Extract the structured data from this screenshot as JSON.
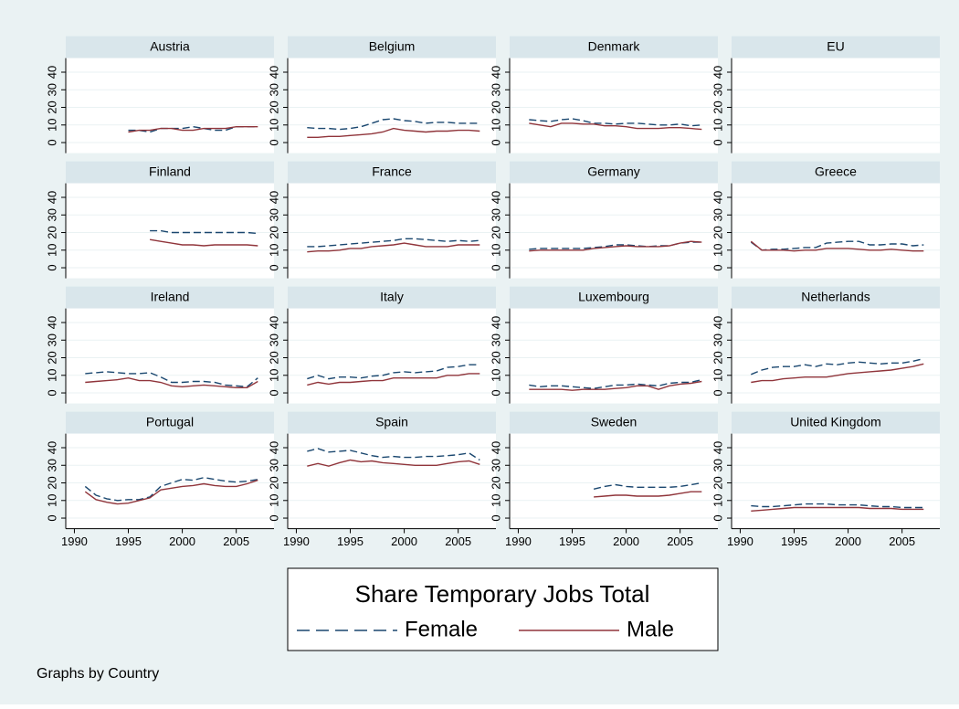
{
  "chart_data": {
    "type": "line",
    "x": [
      1991,
      1992,
      1993,
      1994,
      1995,
      1996,
      1997,
      1998,
      1999,
      2000,
      2001,
      2002,
      2003,
      2004,
      2005,
      2006,
      2007
    ],
    "xlim": [
      1989.2,
      2008.5
    ],
    "xticks": [
      1990,
      1995,
      2000,
      2005
    ],
    "ylim": [
      -6,
      48
    ],
    "yticks": [
      0,
      10,
      20,
      30,
      40
    ],
    "grid": true,
    "legend": {
      "title": "Share Temporary Jobs Total"
    },
    "series": [
      {
        "name": "Female",
        "color": "#1a476f",
        "dashed": true
      },
      {
        "name": "Male",
        "color": "#90353b",
        "dashed": false
      }
    ],
    "note": "Graphs by Country",
    "panels": [
      {
        "title": "Austria",
        "values": [
          [
            null,
            null,
            null,
            null,
            7,
            7,
            6,
            8,
            8,
            8,
            9,
            8,
            7,
            7,
            9,
            9,
            9
          ],
          [
            null,
            null,
            null,
            null,
            6,
            7,
            7,
            8,
            8,
            7,
            7,
            8,
            8,
            8,
            9,
            9,
            9
          ]
        ]
      },
      {
        "title": "Belgium",
        "values": [
          [
            8.5,
            8,
            8,
            7.5,
            8,
            9,
            11,
            13,
            13.5,
            12.5,
            12,
            11,
            11.5,
            11.5,
            11,
            11,
            11
          ],
          [
            3,
            3,
            3.5,
            3.5,
            4,
            4.5,
            5,
            6,
            8,
            7,
            6.5,
            6,
            6.5,
            6.5,
            7,
            7,
            6.5
          ]
        ]
      },
      {
        "title": "Denmark",
        "values": [
          [
            13,
            12.5,
            12,
            13,
            13.5,
            12.5,
            11,
            11,
            10.5,
            11,
            11,
            10.5,
            10,
            10,
            10.5,
            9.5,
            10
          ],
          [
            11,
            10,
            9,
            11,
            11,
            10.5,
            10.5,
            9.5,
            9.5,
            9,
            8,
            8,
            8,
            8.5,
            8.5,
            8,
            7.5
          ]
        ]
      },
      {
        "title": "EU",
        "values": [
          [
            null,
            null,
            null,
            null,
            null,
            null,
            null,
            null,
            null,
            null,
            null,
            null,
            null,
            null,
            null,
            null,
            null
          ],
          [
            null,
            null,
            null,
            null,
            null,
            null,
            null,
            null,
            null,
            null,
            null,
            null,
            null,
            null,
            null,
            null,
            null
          ]
        ]
      },
      {
        "title": "Finland",
        "values": [
          [
            null,
            null,
            null,
            null,
            null,
            null,
            21,
            21,
            20,
            20,
            20,
            20,
            20,
            20,
            20,
            20,
            19.5
          ],
          [
            null,
            null,
            null,
            null,
            null,
            null,
            16,
            15,
            14,
            13,
            13,
            12.5,
            13,
            13,
            13,
            13,
            12.5
          ]
        ]
      },
      {
        "title": "France",
        "values": [
          [
            12,
            12,
            12.5,
            13,
            13.5,
            14,
            14.5,
            15,
            15.5,
            16.5,
            16.5,
            16,
            15.5,
            15,
            15.5,
            15,
            15.5
          ],
          [
            9,
            9.5,
            9.5,
            10,
            11,
            11,
            12,
            12.5,
            13,
            14,
            13,
            12,
            12,
            12,
            13,
            13,
            13
          ]
        ]
      },
      {
        "title": "Germany",
        "values": [
          [
            10.5,
            11,
            11,
            11,
            11,
            11,
            11.5,
            12,
            13,
            13,
            12.5,
            12,
            12.5,
            12.5,
            14,
            14.5,
            14.5
          ],
          [
            9.5,
            10,
            10,
            10,
            10,
            10,
            11,
            11.5,
            12,
            12.5,
            12,
            12,
            12,
            12.5,
            14,
            15,
            14.5
          ]
        ]
      },
      {
        "title": "Greece",
        "values": [
          [
            14.5,
            10,
            10.5,
            10.5,
            11,
            11.5,
            11.5,
            14,
            14.5,
            15,
            15,
            13,
            13,
            13.5,
            13.5,
            12.5,
            13
          ],
          [
            15,
            10,
            10,
            10,
            9.5,
            10,
            10,
            11,
            11,
            11,
            10.5,
            10,
            10,
            10.5,
            10,
            9.5,
            9.5
          ]
        ]
      },
      {
        "title": "Ireland",
        "values": [
          [
            11,
            11.5,
            12,
            11.5,
            11,
            11,
            11.5,
            9,
            6,
            6,
            6.5,
            6.5,
            6,
            4.5,
            4,
            3.5,
            8.5
          ],
          [
            6,
            6.5,
            7,
            7.5,
            8.5,
            7,
            7,
            6,
            4,
            3.5,
            4,
            4.5,
            4,
            3.5,
            3,
            3,
            6.5
          ]
        ]
      },
      {
        "title": "Italy",
        "values": [
          [
            8,
            10,
            8,
            9,
            9,
            8.5,
            9.5,
            10,
            11.5,
            12,
            11.5,
            12,
            12.5,
            14.5,
            15,
            16,
            16
          ],
          [
            4.5,
            6,
            5,
            6,
            6,
            6.5,
            7,
            7,
            8.5,
            8.5,
            8.5,
            8.5,
            8.5,
            10,
            10,
            11,
            11
          ]
        ]
      },
      {
        "title": "Luxembourg",
        "values": [
          [
            4.5,
            3.5,
            4,
            4,
            3.5,
            3,
            2.5,
            3.5,
            4.5,
            4.5,
            5,
            4.5,
            4,
            5.5,
            6,
            6,
            7.5
          ],
          [
            2,
            2,
            2,
            2,
            1.5,
            2,
            2,
            2,
            2.5,
            3,
            4,
            4,
            2,
            4,
            5,
            5.5,
            6.5
          ]
        ]
      },
      {
        "title": "Netherlands",
        "values": [
          [
            10.5,
            13,
            14.5,
            15,
            15,
            16,
            15,
            16.5,
            16,
            17,
            17.5,
            17,
            16.5,
            17,
            17,
            18,
            19.5
          ],
          [
            6,
            7,
            7,
            8,
            8.5,
            9,
            9,
            9,
            10,
            11,
            11.5,
            12,
            12.5,
            13,
            14,
            15,
            16.5
          ]
        ]
      },
      {
        "title": "Portugal",
        "values": [
          [
            18,
            13,
            11,
            10,
            10.5,
            10.5,
            12,
            18,
            20,
            22,
            21.5,
            23,
            22,
            21,
            20.5,
            21,
            22
          ],
          [
            15,
            10.5,
            9,
            8,
            8.5,
            10,
            11.5,
            16,
            17,
            18,
            18.5,
            19.5,
            18.5,
            18,
            18,
            19.5,
            21.5
          ]
        ]
      },
      {
        "title": "Spain",
        "values": [
          [
            38,
            39.5,
            37.5,
            38,
            38.5,
            37,
            35.5,
            34.5,
            35,
            34.5,
            34.5,
            35,
            35,
            35.5,
            36,
            37,
            33
          ],
          [
            29.5,
            31,
            29.5,
            31.5,
            33,
            32,
            32.5,
            31.5,
            31,
            30.5,
            30,
            30,
            30,
            31,
            32,
            32.5,
            30.5
          ]
        ]
      },
      {
        "title": "Sweden",
        "values": [
          [
            null,
            null,
            null,
            null,
            null,
            null,
            16.5,
            18,
            19,
            18,
            17.5,
            17.5,
            17.5,
            17.5,
            18,
            19,
            20
          ],
          [
            null,
            null,
            null,
            null,
            null,
            null,
            12,
            12.5,
            13,
            13,
            12.5,
            12.5,
            12.5,
            13,
            14,
            15,
            15
          ]
        ]
      },
      {
        "title": "United Kingdom",
        "values": [
          [
            7,
            6.5,
            6.5,
            7,
            7.5,
            8,
            8,
            8,
            7.5,
            7.5,
            7.5,
            7,
            6.5,
            6.5,
            6,
            6,
            6
          ],
          [
            4,
            4.5,
            5,
            5.5,
            6,
            6,
            6,
            6,
            6,
            6,
            6,
            5.5,
            5.5,
            5.5,
            5,
            5,
            5
          ]
        ]
      }
    ]
  }
}
